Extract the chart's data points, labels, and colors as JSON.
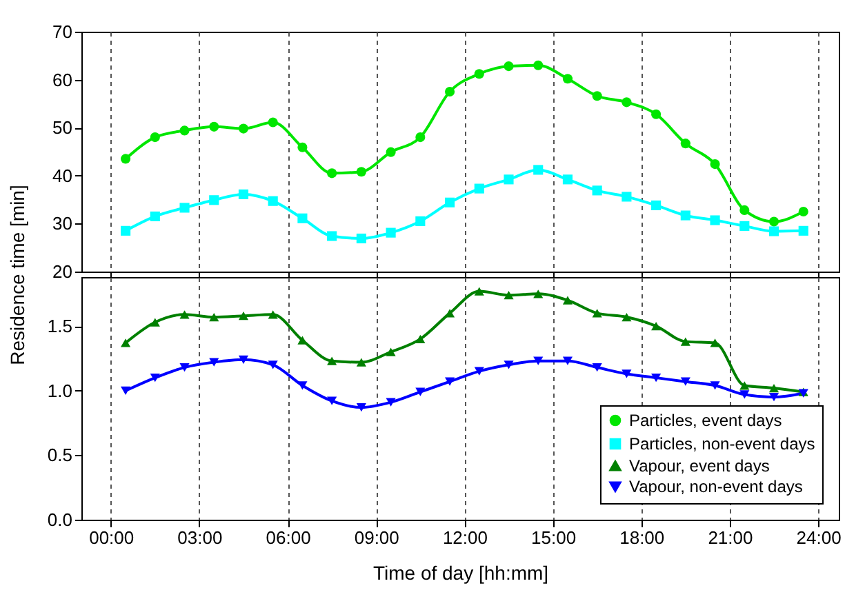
{
  "chart_data": [
    {
      "type": "line",
      "x": [
        0.5,
        1.5,
        2.5,
        3.5,
        4.5,
        5.5,
        6.5,
        7.5,
        8.5,
        9.5,
        10.5,
        11.5,
        12.5,
        13.5,
        14.5,
        15.5,
        16.5,
        17.5,
        18.5,
        19.5,
        20.5,
        21.5,
        22.5,
        23.5
      ],
      "xlim": [
        -1,
        24.7
      ],
      "xticks": [
        {
          "value": 0,
          "label": null
        },
        {
          "value": 3,
          "label": null
        },
        {
          "value": 6,
          "label": null
        },
        {
          "value": 9,
          "label": null
        },
        {
          "value": 12,
          "label": null
        },
        {
          "value": 15,
          "label": null
        },
        {
          "value": 18,
          "label": null
        },
        {
          "value": 21,
          "label": null
        },
        {
          "value": 24,
          "label": null
        }
      ],
      "ylim": [
        20,
        70
      ],
      "yticks": [
        20,
        30,
        40,
        50,
        60,
        70
      ],
      "grid": "x",
      "tick_labels": "y",
      "legend": "bottom right",
      "series": [
        {
          "name": "Particles, event days",
          "color": "#00e600",
          "marker": "circle",
          "values": [
            43.5,
            48.0,
            49.4,
            50.2,
            49.8,
            51.1,
            45.9,
            40.5,
            40.8,
            44.9,
            48.0,
            57.5,
            61.2,
            62.8,
            63.0,
            60.2,
            56.6,
            55.3,
            52.8,
            46.7,
            42.4,
            32.8,
            30.4,
            32.5
          ]
        },
        {
          "name": "Particles, non-event days",
          "color": "#00ffff",
          "marker": "square",
          "values": [
            28.5,
            31.5,
            33.3,
            34.9,
            36.1,
            34.7,
            31.1,
            27.4,
            26.9,
            28.1,
            30.5,
            34.4,
            37.3,
            39.2,
            41.2,
            39.2,
            36.9,
            35.6,
            33.8,
            31.7,
            30.7,
            29.5,
            28.4,
            28.5
          ]
        }
      ]
    },
    {
      "type": "line",
      "x": [
        0.5,
        1.5,
        2.5,
        3.5,
        4.5,
        5.5,
        6.5,
        7.5,
        8.5,
        9.5,
        10.5,
        11.5,
        12.5,
        13.5,
        14.5,
        15.5,
        16.5,
        17.5,
        18.5,
        19.5,
        20.5,
        21.5,
        22.5,
        23.5
      ],
      "xlim": [
        -1,
        24.7
      ],
      "xticks": [
        {
          "value": 0,
          "label": "00:00"
        },
        {
          "value": 3,
          "label": "03:00"
        },
        {
          "value": 6,
          "label": "06:00"
        },
        {
          "value": 9,
          "label": "09:00"
        },
        {
          "value": 12,
          "label": "12:00"
        },
        {
          "value": 15,
          "label": "15:00"
        },
        {
          "value": 18,
          "label": "18:00"
        },
        {
          "value": 21,
          "label": "21:00"
        },
        {
          "value": 24,
          "label": "24:00"
        }
      ],
      "ylim": [
        0,
        1.88
      ],
      "yticks": [
        {
          "value": 0,
          "label": "0.0"
        },
        0.5,
        {
          "value": 1,
          "label": "1.0"
        },
        1.5
      ],
      "grid": "x",
      "legend": "bottom right",
      "xlabel": "Time of day   [hh:mm]",
      "ylabel": "Residence time   [min]",
      "series": [
        {
          "name": "Vapour, event days",
          "color": "#008000",
          "marker": "triangle",
          "values": [
            1.37,
            1.53,
            1.59,
            1.57,
            1.58,
            1.59,
            1.39,
            1.23,
            1.22,
            1.3,
            1.4,
            1.6,
            1.77,
            1.74,
            1.75,
            1.7,
            1.6,
            1.57,
            1.5,
            1.38,
            1.37,
            1.04,
            1.02,
            0.99
          ]
        },
        {
          "name": "Vapour, non-event days",
          "color": "#0000ff",
          "marker": "triangle-down",
          "values": [
            1.0,
            1.1,
            1.18,
            1.22,
            1.24,
            1.2,
            1.04,
            0.92,
            0.87,
            0.91,
            0.99,
            1.07,
            1.15,
            1.2,
            1.23,
            1.23,
            1.18,
            1.13,
            1.1,
            1.07,
            1.04,
            0.97,
            0.95,
            0.98
          ]
        }
      ]
    }
  ]
}
